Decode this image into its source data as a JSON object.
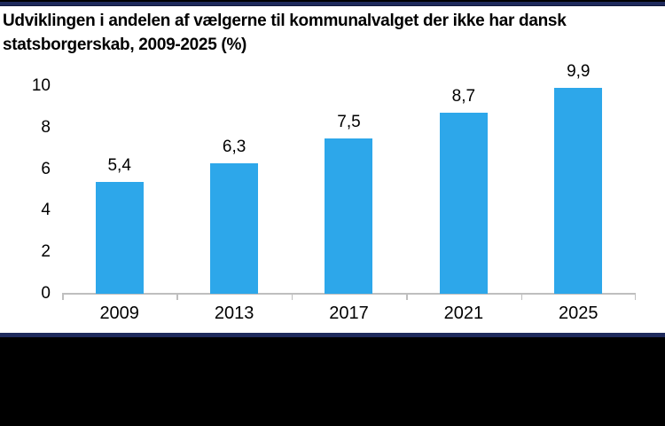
{
  "page": {
    "title_lines": [
      "Udviklingen i andelen af vælgerne til kommunalvalget der ikke har dansk",
      "statsborgerskab, 2009-2025 (%)"
    ]
  },
  "chart_data": {
    "type": "bar",
    "title": "Udviklingen i andelen af vælgerne til kommunalvalget der ikke har dansk statsborgerskab, 2009-2025 (%)",
    "categories": [
      "2009",
      "2013",
      "2017",
      "2021",
      "2025"
    ],
    "values": [
      5.4,
      6.3,
      7.5,
      8.7,
      9.9
    ],
    "value_labels": [
      "5,4",
      "6,3",
      "7,5",
      "8,7",
      "9,9"
    ],
    "xlabel": "",
    "ylabel": "",
    "ylim": [
      0,
      10
    ],
    "yticks": [
      0,
      2,
      4,
      6,
      8,
      10
    ],
    "grid": false,
    "legend": false,
    "decimal_separator": ","
  },
  "colors": {
    "bar": "#2DA7EA",
    "accent_band": "#1E2A5C",
    "axis_line": "#BFBFBF",
    "text": "#000000",
    "card_background": "#FFFFFF",
    "letterbox": "#000000"
  }
}
